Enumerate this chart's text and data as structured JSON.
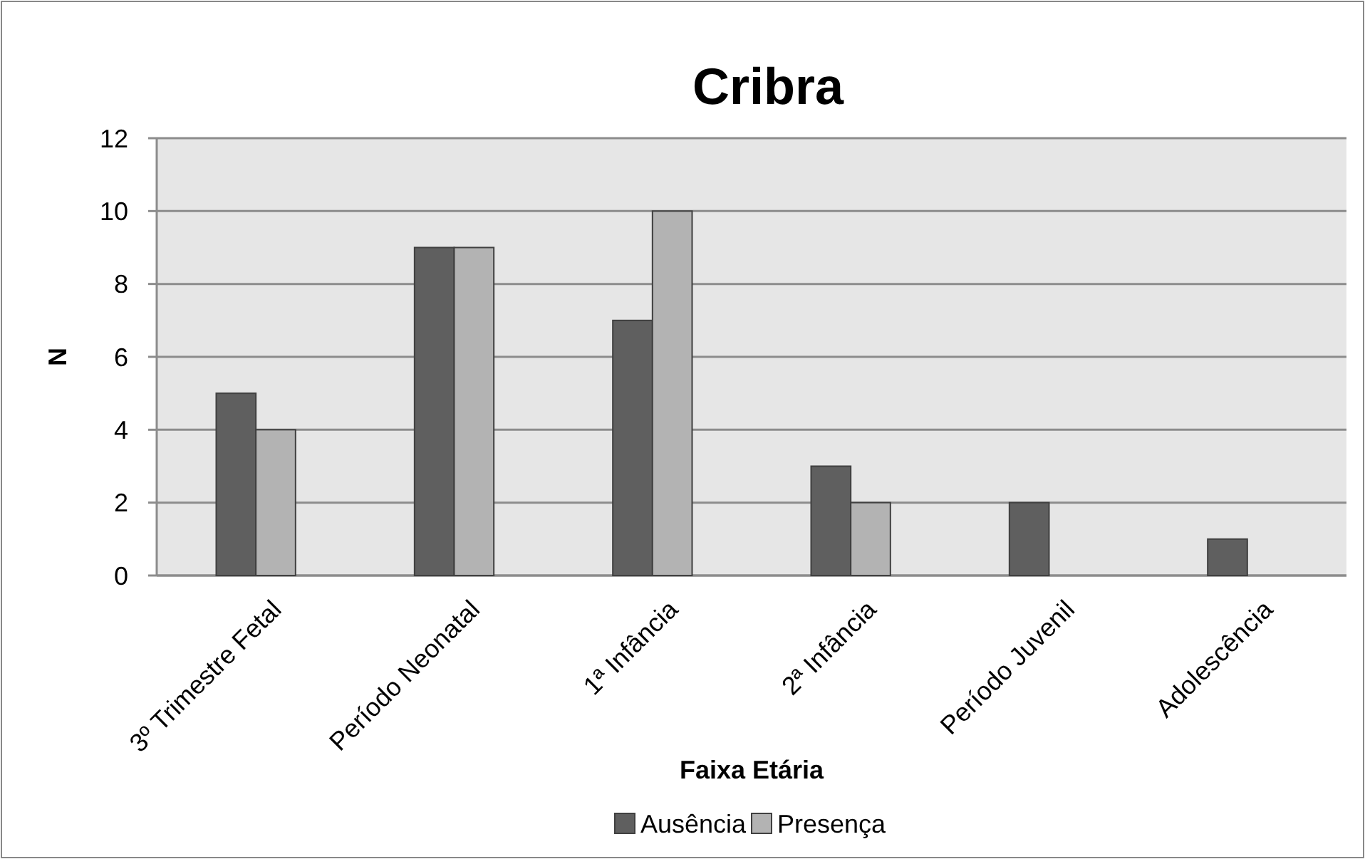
{
  "chart_data": {
    "type": "bar",
    "title": "Cribra",
    "xlabel": "Faixa Etária",
    "ylabel": "N",
    "categories": [
      "3º Trimestre Fetal",
      "Período Neonatal",
      "1ª Infância",
      "2ª Infância",
      "Período Juvenil",
      "Adolescência"
    ],
    "series": [
      {
        "name": "Ausência",
        "color": "#5f5f5f",
        "values": [
          5,
          9,
          7,
          3,
          2,
          1
        ]
      },
      {
        "name": "Presença",
        "color": "#b3b3b3",
        "values": [
          4,
          9,
          10,
          2,
          0,
          0
        ]
      }
    ],
    "ylim": [
      0,
      12
    ],
    "yticks": [
      0,
      2,
      4,
      6,
      8,
      10,
      12
    ],
    "grid": "y",
    "legend": "bottom"
  }
}
